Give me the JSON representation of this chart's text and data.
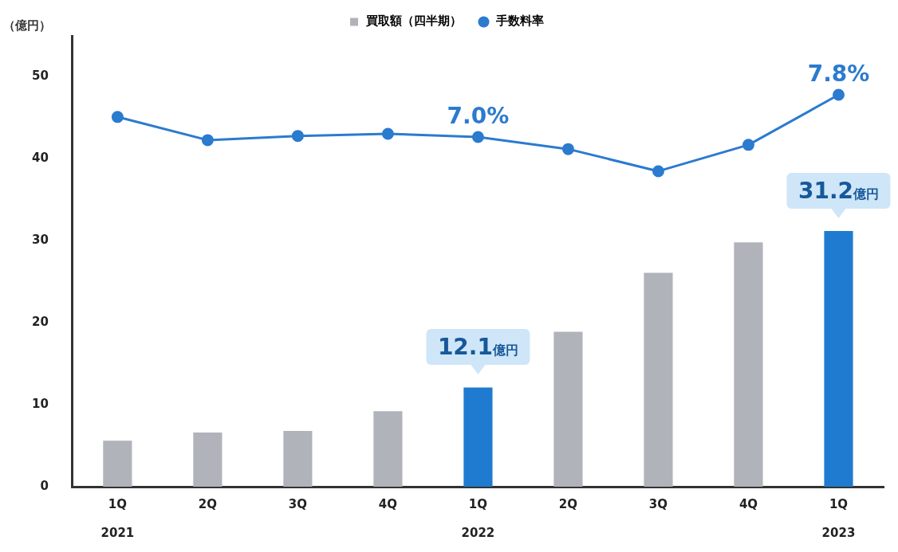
{
  "chart_data": {
    "type": "bar",
    "ylabel": "（億円）",
    "categories": [
      "1Q\n2021",
      "2Q",
      "3Q",
      "4Q",
      "1Q\n2022",
      "2Q",
      "3Q",
      "4Q",
      "1Q\n2023"
    ],
    "series": [
      {
        "name": "買取額（四半期）",
        "color": "#b0b3b9",
        "colors": [
          "#b0b3b9",
          "#b0b3b9",
          "#b0b3b9",
          "#b0b3b9",
          "#1f7bd0",
          "#b0b3b9",
          "#b0b3b9",
          "#b0b3b9",
          "#1f7bd0"
        ],
        "values": [
          5.6,
          6.6,
          6.8,
          9.2,
          12.1,
          18.9,
          26.1,
          29.8,
          31.2
        ],
        "value_labels": [
          null,
          null,
          null,
          null,
          "12.1億円",
          null,
          null,
          null,
          "31.2億円"
        ]
      },
      {
        "name": "手数料率",
        "type": "line",
        "axis": "y2",
        "color": "#2b7bcf",
        "values": [
          7.38,
          6.94,
          7.02,
          7.06,
          7.0,
          6.77,
          6.35,
          6.85,
          7.8
        ],
        "value_labels": [
          null,
          null,
          null,
          null,
          "7.0%",
          null,
          null,
          null,
          "7.8%"
        ]
      }
    ],
    "ylim": [
      0,
      55
    ],
    "yticks": [
      0,
      10,
      20,
      30,
      40,
      50
    ],
    "y2lim": [
      0.36,
      8.92
    ],
    "grid": false,
    "legend": "top",
    "marker": "circle",
    "line_style": "solid"
  }
}
